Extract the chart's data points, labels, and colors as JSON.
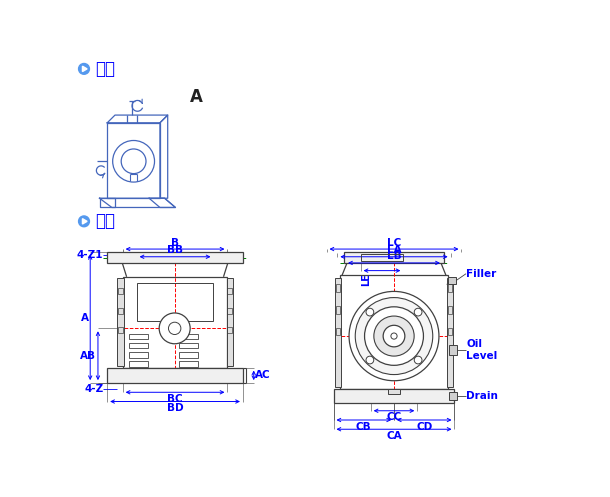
{
  "title_1": "軸向",
  "title_2": "規格",
  "bg_color": "#ffffff",
  "blue_color": "#0000ff",
  "line_color": "#404040",
  "red_dashed": "#ff0000",
  "green_dashed": "#008000",
  "label_A": "A",
  "fs": 7.5,
  "fs_header": 12
}
